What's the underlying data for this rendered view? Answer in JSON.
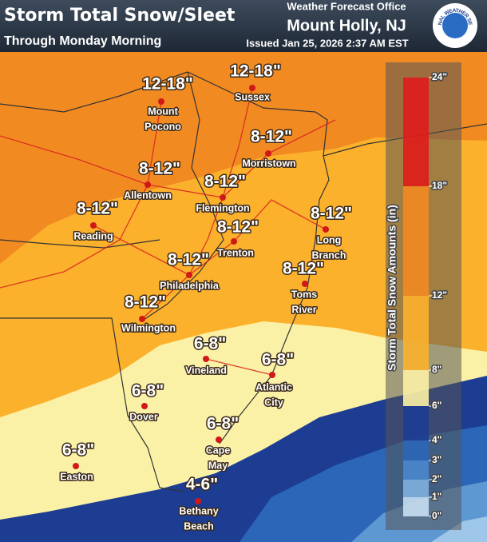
{
  "header": {
    "title": "Storm Total Snow/Sleet",
    "subtitle": "Through Monday Morning",
    "office": "Weather Forecast Office",
    "location": "Mount Holly, NJ",
    "issued": "Issued Jan 25, 2026 2:37 AM EST",
    "logo": "NATIONAL WEATHER SERVICE"
  },
  "cities": [
    {
      "amount": "12-18\"",
      "name": [
        "Mount",
        "Pocono"
      ]
    },
    {
      "amount": "12-18\"",
      "name": [
        "Sussex"
      ]
    },
    {
      "amount": "8-12\"",
      "name": [
        "Morristown"
      ]
    },
    {
      "amount": "8-12\"",
      "name": [
        "Allentown"
      ]
    },
    {
      "amount": "8-12\"",
      "name": [
        "Flemington"
      ]
    },
    {
      "amount": "8-12\"",
      "name": [
        "Reading"
      ]
    },
    {
      "amount": "8-12\"",
      "name": [
        "Trenton"
      ]
    },
    {
      "amount": "8-12\"",
      "name": [
        "Long",
        "Branch"
      ]
    },
    {
      "amount": "8-12\"",
      "name": [
        "Philadelphia"
      ]
    },
    {
      "amount": "8-12\"",
      "name": [
        "Toms",
        "River"
      ]
    },
    {
      "amount": "8-12\"",
      "name": [
        "Wilmington"
      ]
    },
    {
      "amount": "6-8\"",
      "name": [
        "Vineland"
      ]
    },
    {
      "amount": "6-8\"",
      "name": [
        "Atlantic",
        "City"
      ]
    },
    {
      "amount": "6-8\"",
      "name": [
        "Dover"
      ]
    },
    {
      "amount": "6-8\"",
      "name": [
        "Cape",
        "May"
      ]
    },
    {
      "amount": "6-8\"",
      "name": [
        "Easton"
      ]
    },
    {
      "amount": "4-6\"",
      "name": [
        "Bethany",
        "Beach"
      ]
    }
  ],
  "legend": {
    "title": "Storm Total Snow Amounts (in)",
    "labels": [
      "24\"",
      "18\"",
      "12\"",
      "8\"",
      "6\"",
      "4\"",
      "3\"",
      "2\"",
      "1\"",
      "0\""
    ]
  }
}
